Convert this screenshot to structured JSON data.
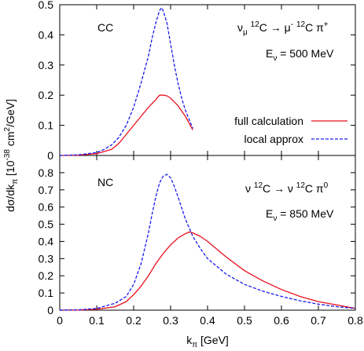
{
  "shared_axes": {
    "xlabel_base": "k",
    "xlabel_sub": "π",
    "xlabel_unit": " [GeV]",
    "ylabel_parts": {
      "a": "dσ/dk",
      "sub": "π",
      "b": " [10",
      "sup1": "-38",
      "c": " cm",
      "sup2": "2",
      "d": "/GeV]"
    }
  },
  "legend": {
    "entries": [
      {
        "label": "full calculation",
        "color": "#e8101e",
        "dash": "solid"
      },
      {
        "label": "local approx",
        "color": "#1a1aee",
        "dash": "dashed"
      }
    ]
  },
  "panels": {
    "cc": {
      "tag": "CC",
      "reaction": {
        "nu": "ν",
        "nu_sub": "μ",
        "a1": " ",
        "a1_sup": "12",
        "a2": "C → μ",
        "a2_sup": "-",
        "a3": " ",
        "a3_sup": "12",
        "a4": "C π",
        "a4_sup": "+"
      },
      "energy": {
        "e": "E",
        "e_sub": "ν",
        "value": " = 500 MeV"
      }
    },
    "nc": {
      "tag": "NC",
      "reaction": {
        "nu": "ν",
        "a1": " ",
        "a1_sup": "12",
        "a2": "C → ν ",
        "a2_sup": "12",
        "a3": "C π",
        "a3_sup": "0"
      },
      "energy": {
        "e": "E",
        "e_sub": "ν",
        "value": " = 850 MeV"
      }
    }
  },
  "chart_data": [
    {
      "type": "line",
      "xlim": [
        0,
        0.8
      ],
      "ylim": [
        0,
        0.5
      ],
      "xticks": [
        0,
        0.1,
        0.2,
        0.3,
        0.4,
        0.5,
        0.6,
        0.7,
        0.8
      ],
      "xtick_labels": [],
      "yticks": [
        0,
        0.1,
        0.2,
        0.3,
        0.4,
        0.5
      ],
      "ytick_labels": [
        "0",
        "0.1",
        "0.2",
        "0.3",
        "0.4",
        "0.5"
      ],
      "series": [
        {
          "name": "full calculation",
          "color": "#e8101e",
          "dash": "solid",
          "x": [
            0.0,
            0.05,
            0.1,
            0.14,
            0.16,
            0.18,
            0.2,
            0.22,
            0.24,
            0.26,
            0.27,
            0.28,
            0.29,
            0.3,
            0.32,
            0.34,
            0.36
          ],
          "y": [
            0.0,
            0.001,
            0.006,
            0.02,
            0.04,
            0.07,
            0.1,
            0.13,
            0.16,
            0.185,
            0.2,
            0.2,
            0.198,
            0.19,
            0.165,
            0.13,
            0.085
          ]
        },
        {
          "name": "local approx",
          "color": "#1a1aee",
          "dash": "dashed",
          "x": [
            0.0,
            0.05,
            0.1,
            0.12,
            0.14,
            0.16,
            0.18,
            0.2,
            0.22,
            0.24,
            0.25,
            0.26,
            0.27,
            0.275,
            0.28,
            0.29,
            0.3,
            0.31,
            0.32,
            0.33,
            0.34,
            0.35,
            0.36
          ],
          "y": [
            0.0,
            0.002,
            0.01,
            0.02,
            0.035,
            0.06,
            0.1,
            0.16,
            0.24,
            0.33,
            0.39,
            0.44,
            0.48,
            0.49,
            0.48,
            0.44,
            0.37,
            0.3,
            0.24,
            0.19,
            0.15,
            0.12,
            0.09
          ]
        }
      ]
    },
    {
      "type": "line",
      "xlim": [
        0,
        0.8
      ],
      "ylim": [
        0,
        0.9
      ],
      "xticks": [
        0,
        0.1,
        0.2,
        0.3,
        0.4,
        0.5,
        0.6,
        0.7,
        0.8
      ],
      "xtick_labels": [
        "0",
        "0.1",
        "0.2",
        "0.3",
        "0.4",
        "0.5",
        "0.6",
        "0.7",
        "0.8"
      ],
      "yticks": [
        0,
        0.1,
        0.2,
        0.3,
        0.4,
        0.5,
        0.6,
        0.7,
        0.8
      ],
      "ytick_labels": [
        "0",
        "0.1",
        "0.2",
        "0.3",
        "0.4",
        "0.5",
        "0.6",
        "0.7",
        "0.8"
      ],
      "series": [
        {
          "name": "full calculation",
          "color": "#e8101e",
          "dash": "solid",
          "x": [
            0.0,
            0.05,
            0.1,
            0.15,
            0.18,
            0.2,
            0.22,
            0.24,
            0.26,
            0.28,
            0.3,
            0.32,
            0.34,
            0.35,
            0.36,
            0.38,
            0.4,
            0.45,
            0.5,
            0.55,
            0.6,
            0.65,
            0.7,
            0.75,
            0.8
          ],
          "y": [
            0.0,
            0.001,
            0.005,
            0.02,
            0.05,
            0.09,
            0.14,
            0.2,
            0.27,
            0.33,
            0.38,
            0.42,
            0.445,
            0.455,
            0.45,
            0.43,
            0.4,
            0.31,
            0.23,
            0.17,
            0.12,
            0.08,
            0.05,
            0.03,
            0.01
          ]
        },
        {
          "name": "local approx",
          "color": "#1a1aee",
          "dash": "dashed",
          "x": [
            0.0,
            0.05,
            0.1,
            0.15,
            0.18,
            0.2,
            0.22,
            0.24,
            0.25,
            0.26,
            0.27,
            0.28,
            0.29,
            0.3,
            0.31,
            0.32,
            0.34,
            0.36,
            0.38,
            0.4,
            0.45,
            0.5,
            0.55,
            0.6,
            0.65,
            0.7,
            0.75,
            0.8
          ],
          "y": [
            0.0,
            0.002,
            0.01,
            0.04,
            0.08,
            0.15,
            0.27,
            0.45,
            0.56,
            0.66,
            0.74,
            0.78,
            0.79,
            0.77,
            0.72,
            0.66,
            0.53,
            0.43,
            0.36,
            0.3,
            0.21,
            0.15,
            0.11,
            0.08,
            0.055,
            0.035,
            0.02,
            0.01
          ]
        }
      ]
    }
  ]
}
